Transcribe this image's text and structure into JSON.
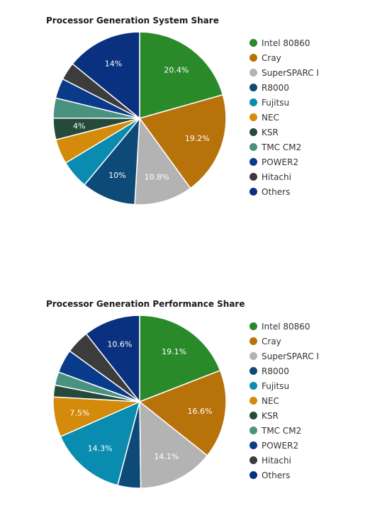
{
  "chart_data": [
    {
      "type": "pie",
      "title": "Processor Generation System Share",
      "categories": [
        "Intel 80860",
        "Cray",
        "SuperSPARC I",
        "R8000",
        "Fujitsu",
        "NEC",
        "KSR",
        "TMC CM2",
        "POWER2",
        "Hitachi",
        "Others"
      ],
      "values": [
        20.4,
        19.2,
        10.8,
        10,
        5.3,
        4.6,
        4,
        3.7,
        3.7,
        3.3,
        14
      ],
      "labels": [
        "20.4%",
        "19.2%",
        "10.8%",
        "10%",
        "",
        "",
        "4%",
        "",
        "",
        "",
        "14%"
      ],
      "colors": [
        "#2a8a2a",
        "#b8720a",
        "#b3b3b3",
        "#0d4a78",
        "#0a8bb0",
        "#d48a0a",
        "#254a3a",
        "#4a9280",
        "#0a3a8a",
        "#3c3c3c",
        "#0a3080"
      ],
      "legend_position": "right"
    },
    {
      "type": "pie",
      "title": "Processor Generation Performance Share",
      "categories": [
        "Intel 80860",
        "Cray",
        "SuperSPARC I",
        "R8000",
        "Fujitsu",
        "NEC",
        "KSR",
        "TMC CM2",
        "POWER2",
        "Hitachi",
        "Others"
      ],
      "values": [
        19.1,
        16.6,
        14.1,
        4.3,
        14.3,
        7.5,
        2.2,
        2.5,
        4.4,
        4.4,
        10.6
      ],
      "labels": [
        "19.1%",
        "16.6%",
        "14.1%",
        "",
        "14.3%",
        "7.5%",
        "",
        "",
        "",
        "",
        "10.6%"
      ],
      "colors": [
        "#2a8a2a",
        "#b8720a",
        "#b3b3b3",
        "#0d4a78",
        "#0a8bb0",
        "#d48a0a",
        "#254a3a",
        "#4a9280",
        "#0a3a8a",
        "#3c3c3c",
        "#0a3080"
      ],
      "legend_position": "right"
    }
  ]
}
